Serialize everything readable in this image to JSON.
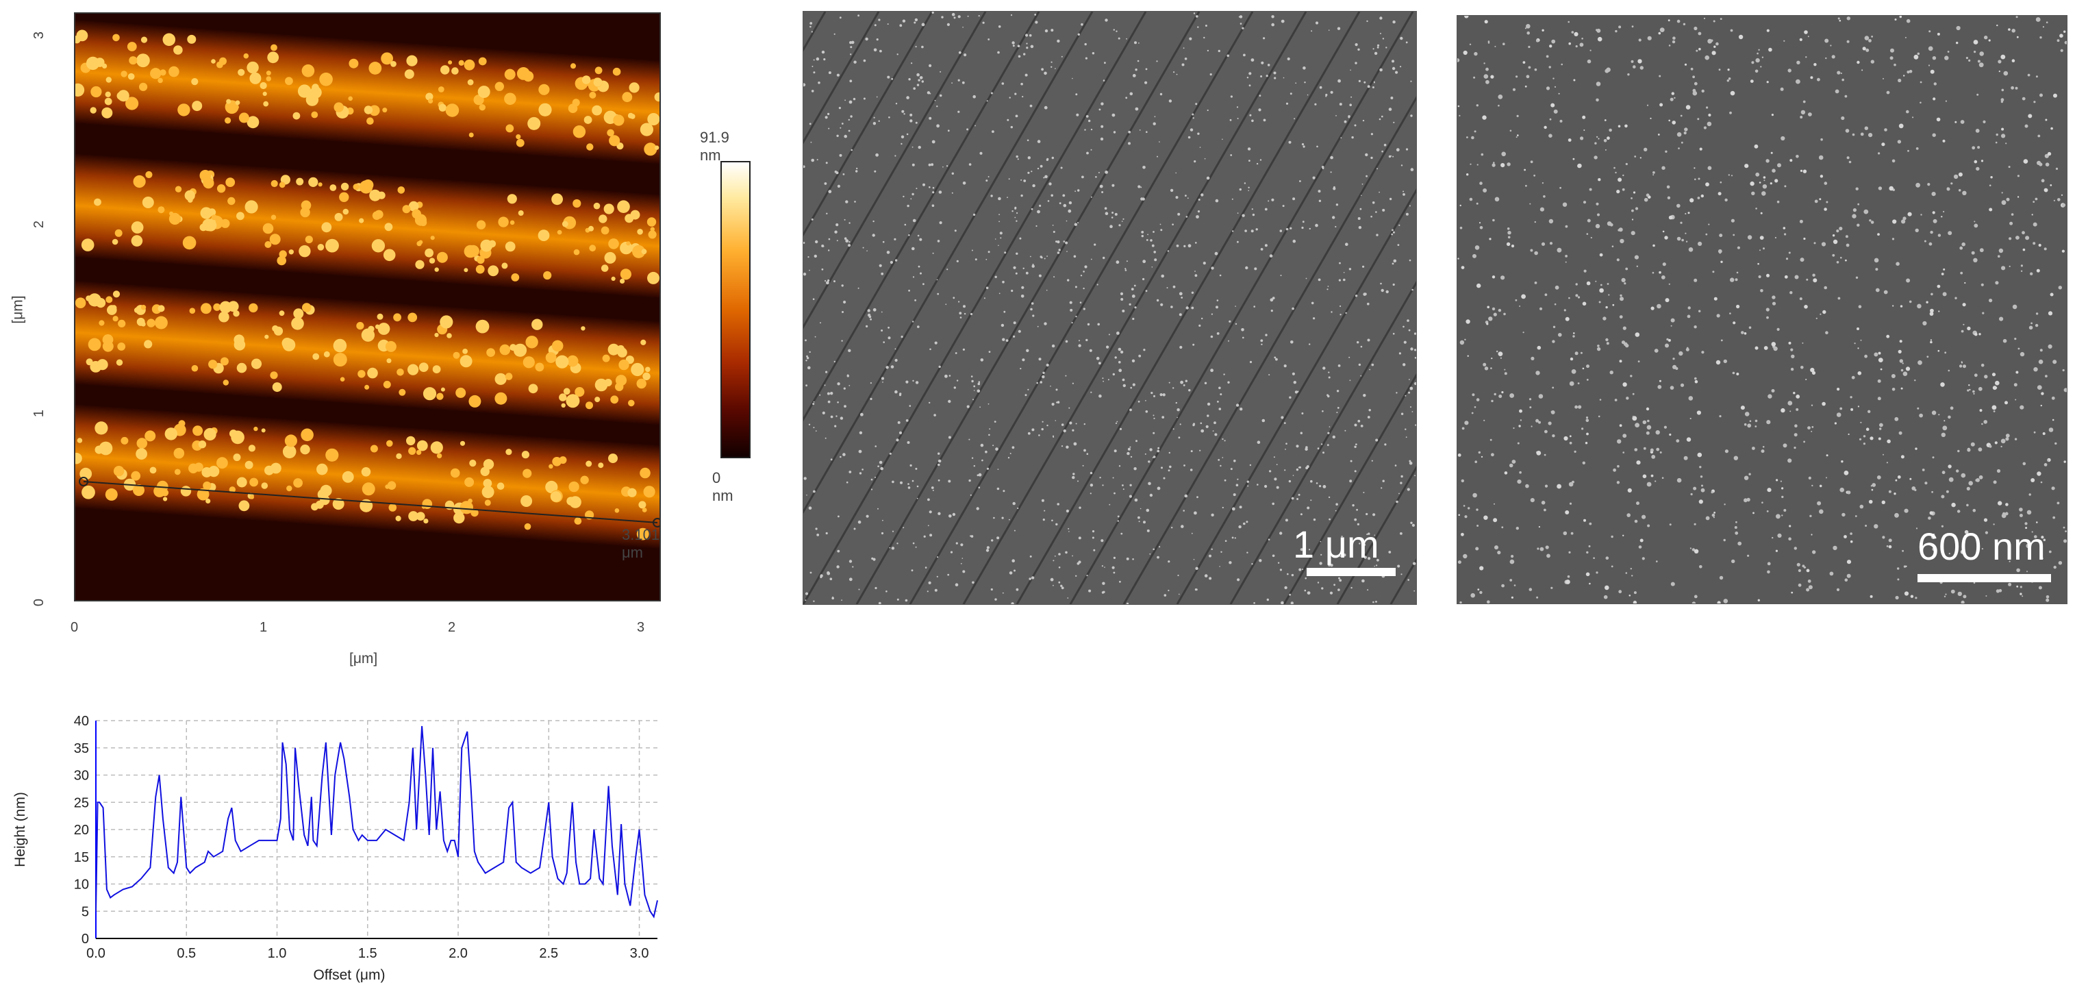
{
  "afm": {
    "y_ticks": [
      "3",
      "2",
      "1",
      "0"
    ],
    "x_ticks": [
      "0",
      "1",
      "2",
      "3"
    ],
    "y_label": "[μm]",
    "x_label": "[μm]",
    "line_length": "3.101 μm",
    "colorbar_max": "91.9 nm",
    "colorbar_min": "0 nm"
  },
  "sem_left": {
    "scale_label": "1 μm"
  },
  "sem_right": {
    "scale_label": "600 nm"
  },
  "chart_data": {
    "type": "line",
    "title": "",
    "xlabel": "Offset (μm)",
    "ylabel": "Height (nm)",
    "xlim": [
      0,
      3.1
    ],
    "ylim": [
      0,
      40
    ],
    "x_ticks": [
      "0.0",
      "0.5",
      "1.0",
      "1.5",
      "2.0",
      "2.5",
      "3.0"
    ],
    "y_ticks": [
      "0",
      "5",
      "10",
      "15",
      "20",
      "25",
      "30",
      "35",
      "40"
    ],
    "grid": true,
    "color": "#1010e0",
    "series": [
      {
        "x": [
          0.0,
          0.01,
          0.02,
          0.04,
          0.06,
          0.08,
          0.1,
          0.15,
          0.2,
          0.25,
          0.3,
          0.33,
          0.35,
          0.37,
          0.4,
          0.43,
          0.45,
          0.47,
          0.5,
          0.52,
          0.55,
          0.6,
          0.62,
          0.65,
          0.7,
          0.73,
          0.75,
          0.77,
          0.8,
          0.85,
          0.9,
          0.95,
          1.0,
          1.02,
          1.03,
          1.05,
          1.07,
          1.09,
          1.1,
          1.12,
          1.15,
          1.17,
          1.19,
          1.2,
          1.22,
          1.25,
          1.27,
          1.3,
          1.32,
          1.35,
          1.37,
          1.4,
          1.42,
          1.45,
          1.47,
          1.5,
          1.55,
          1.6,
          1.65,
          1.7,
          1.73,
          1.75,
          1.77,
          1.8,
          1.82,
          1.84,
          1.86,
          1.88,
          1.9,
          1.92,
          1.94,
          1.96,
          1.98,
          2.0,
          2.02,
          2.05,
          2.07,
          2.09,
          2.11,
          2.13,
          2.15,
          2.2,
          2.25,
          2.28,
          2.3,
          2.32,
          2.35,
          2.4,
          2.45,
          2.48,
          2.5,
          2.52,
          2.55,
          2.58,
          2.6,
          2.63,
          2.65,
          2.67,
          2.7,
          2.73,
          2.75,
          2.78,
          2.8,
          2.83,
          2.85,
          2.88,
          2.9,
          2.92,
          2.95,
          2.98,
          3.0,
          3.03,
          3.06,
          3.08,
          3.1
        ],
        "y": [
          5,
          25,
          25,
          24,
          9,
          7.5,
          8,
          9,
          9.5,
          11,
          13,
          26,
          30,
          22,
          13,
          12,
          14,
          26,
          13,
          12,
          13,
          14,
          16,
          15,
          16,
          22,
          24,
          18,
          16,
          17,
          18,
          18,
          18,
          22,
          36,
          32,
          20,
          18,
          35,
          28,
          19,
          17,
          26,
          18,
          17,
          30,
          36,
          19,
          30,
          36,
          33,
          26,
          20,
          18,
          19,
          18,
          18,
          20,
          19,
          18,
          25,
          35,
          20,
          39,
          30,
          19,
          35,
          20,
          27,
          18,
          16,
          18,
          18,
          15,
          35,
          38,
          28,
          16,
          14,
          13,
          12,
          13,
          14,
          24,
          25,
          14,
          13,
          12,
          13,
          20,
          25,
          15,
          11,
          10,
          12,
          25,
          14,
          10,
          10,
          11,
          20,
          11,
          10,
          28,
          17,
          8,
          21,
          10,
          6,
          15,
          20,
          8,
          5,
          4,
          7
        ]
      }
    ]
  }
}
